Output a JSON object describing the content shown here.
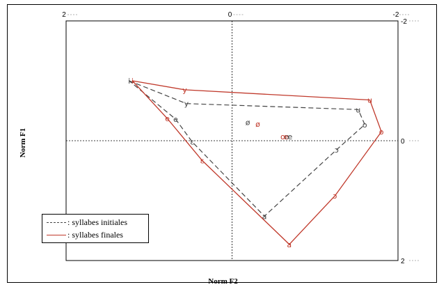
{
  "chart_data": {
    "type": "scatter",
    "xlabel": "Norm F2",
    "ylabel": "Norm F1",
    "xlim": [
      2,
      -2
    ],
    "ylim": [
      -2,
      2
    ],
    "x_ticks": [
      "2",
      "0",
      "-2"
    ],
    "y_ticks": [
      "-2",
      "0",
      "2"
    ],
    "legend_position": "bottom-left",
    "series": [
      {
        "name": ": syllabes initiales",
        "style": "dashed",
        "color": "#444444",
        "hull": [
          "i",
          "y",
          "u",
          "o",
          "ɔ",
          "a",
          "ɛ",
          "e",
          "i"
        ],
        "points": [
          {
            "label": "i",
            "x": 1.24,
            "y": -1.0
          },
          {
            "label": "y",
            "x": 0.55,
            "y": -0.62
          },
          {
            "label": "u",
            "x": -1.52,
            "y": -0.52
          },
          {
            "label": "o",
            "x": -1.6,
            "y": -0.27
          },
          {
            "label": "ɔ",
            "x": -1.26,
            "y": 0.15
          },
          {
            "label": "a",
            "x": -0.39,
            "y": 1.26
          },
          {
            "label": "ɛ",
            "x": 0.48,
            "y": 0.02
          },
          {
            "label": "e",
            "x": 0.68,
            "y": -0.36
          },
          {
            "label": "ø",
            "x": -0.19,
            "y": -0.31
          },
          {
            "label": "œ",
            "x": -0.68,
            "y": -0.07
          }
        ]
      },
      {
        "name": ": syllabes finales",
        "style": "solid",
        "color": "#c0392b",
        "hull": [
          "i",
          "y",
          "u",
          "o",
          "ɔ",
          "a",
          "ɛ",
          "e",
          "i"
        ],
        "points": [
          {
            "label": "i",
            "x": 1.2,
            "y": -1.0
          },
          {
            "label": "y",
            "x": 0.57,
            "y": -0.85
          },
          {
            "label": "u",
            "x": -1.66,
            "y": -0.68
          },
          {
            "label": "o",
            "x": -1.8,
            "y": -0.15
          },
          {
            "label": "ɔ",
            "x": -1.24,
            "y": 0.92
          },
          {
            "label": "a",
            "x": -0.69,
            "y": 1.73
          },
          {
            "label": "ɛ",
            "x": 0.36,
            "y": 0.33
          },
          {
            "label": "e",
            "x": 0.78,
            "y": -0.37
          },
          {
            "label": "ø",
            "x": -0.31,
            "y": -0.28
          },
          {
            "label": "œ",
            "x": -0.63,
            "y": -0.07
          }
        ]
      }
    ]
  }
}
